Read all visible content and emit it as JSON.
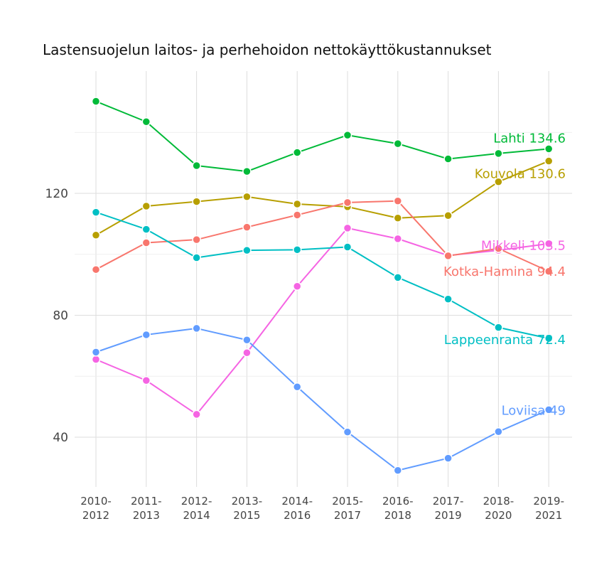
{
  "chart_data": {
    "type": "line",
    "title": "Lastensuojelun laitos- ja perhehoidon nettokäyttökustannukset",
    "xlabel": "",
    "ylabel": "",
    "categories": [
      [
        "2010-",
        "2012"
      ],
      [
        "2011-",
        "2013"
      ],
      [
        "2012-",
        "2014"
      ],
      [
        "2013-",
        "2015"
      ],
      [
        "2014-",
        "2016"
      ],
      [
        "2015-",
        "2017"
      ],
      [
        "2016-",
        "2018"
      ],
      [
        "2017-",
        "2019"
      ],
      [
        "2018-",
        "2020"
      ],
      [
        "2019-",
        "2021"
      ]
    ],
    "yticks": [
      40,
      80,
      120
    ],
    "ylim": [
      24,
      158
    ],
    "grid": true,
    "legend": "end-of-line labels",
    "series": [
      {
        "name": "Lahti",
        "end_label": "Lahti 134.6",
        "color": "#00ba38",
        "values": [
          150.2,
          143.5,
          129.1,
          127.2,
          133.4,
          139.1,
          136.3,
          131.3,
          133.1,
          134.6
        ]
      },
      {
        "name": "Kouvola",
        "end_label": "Kouvola 130.6",
        "color": "#b79f00",
        "values": [
          106.3,
          115.8,
          117.3,
          118.9,
          116.5,
          115.6,
          111.9,
          112.7,
          123.8,
          130.6
        ]
      },
      {
        "name": "Mikkeli",
        "end_label": "Mikkeli 103.5",
        "color": "#f564e3",
        "values": [
          65.5,
          58.6,
          47.5,
          67.7,
          89.5,
          108.6,
          105.1,
          99.6,
          101.3,
          103.5
        ]
      },
      {
        "name": "Kotka-Hamina",
        "end_label": "Kotka-Hamina 94.4",
        "color": "#f8766d",
        "values": [
          95.0,
          103.8,
          104.8,
          108.9,
          112.9,
          117.0,
          117.5,
          99.5,
          101.9,
          94.4
        ]
      },
      {
        "name": "Lappeenranta",
        "end_label": "Lappeenranta 72.4",
        "color": "#00bfc4",
        "values": [
          113.8,
          108.2,
          98.9,
          101.3,
          101.5,
          102.4,
          92.4,
          85.3,
          76.0,
          72.4
        ]
      },
      {
        "name": "Loviisa",
        "end_label": "Loviisa 49",
        "color": "#619cff",
        "values": [
          67.9,
          73.6,
          75.7,
          71.9,
          56.5,
          41.7,
          29.1,
          33.1,
          41.8,
          49.0
        ]
      }
    ]
  }
}
